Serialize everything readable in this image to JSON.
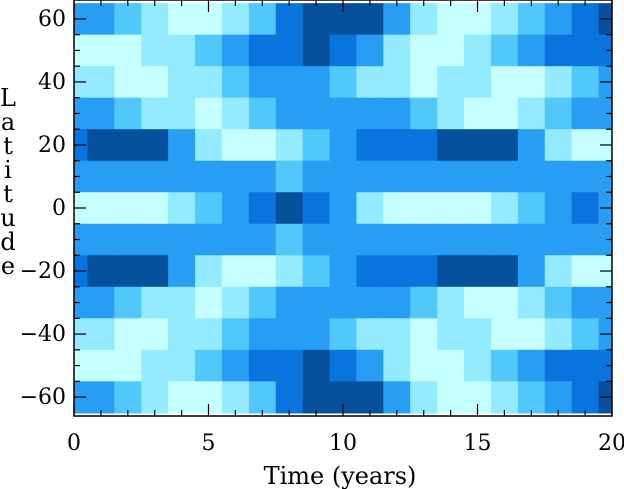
{
  "chart_data": {
    "type": "heatmap",
    "title": "",
    "xlabel": "Time (years)",
    "ylabel": "Latitude",
    "xlim": [
      0,
      20
    ],
    "ylim": [
      -66,
      66
    ],
    "x_ticks": [
      0,
      5,
      10,
      15,
      20
    ],
    "x_tick_labels": [
      "0",
      "5",
      "10",
      "15",
      "20"
    ],
    "y_ticks": [
      60,
      40,
      20,
      0,
      -20,
      -40,
      -60
    ],
    "y_tick_labels": [
      "60",
      "40",
      "20",
      "0",
      "−20",
      "−40",
      "−60"
    ],
    "color_levels": [
      "#07519c",
      "#0a74de",
      "#289df4",
      "#52c7fa",
      "#94eaff",
      "#c6ffff"
    ],
    "grid": false,
    "legend": "none",
    "x": [
      0,
      1,
      2,
      3,
      4,
      5,
      6,
      7,
      8,
      9,
      10,
      11,
      12,
      13,
      14,
      15,
      16,
      17,
      18,
      19,
      20
    ],
    "y": [
      60,
      50,
      40,
      30,
      20,
      10,
      0,
      -10,
      -20,
      -30,
      -40,
      -50,
      -60
    ],
    "z_level_index": [
      [
        2,
        2,
        3,
        4,
        5,
        5,
        4,
        3,
        1,
        0,
        0,
        0,
        2,
        4,
        5,
        5,
        4,
        3,
        2,
        1,
        0
      ],
      [
        5,
        5,
        5,
        4,
        4,
        3,
        2,
        1,
        1,
        0,
        1,
        2,
        4,
        5,
        5,
        4,
        3,
        2,
        1,
        1,
        1
      ],
      [
        4,
        4,
        5,
        5,
        4,
        4,
        3,
        2,
        2,
        2,
        3,
        4,
        4,
        5,
        4,
        4,
        5,
        5,
        4,
        3,
        2
      ],
      [
        2,
        2,
        3,
        4,
        4,
        5,
        4,
        3,
        2,
        2,
        2,
        2,
        2,
        3,
        4,
        5,
        5,
        4,
        3,
        2,
        2
      ],
      [
        1,
        0,
        0,
        0,
        2,
        4,
        5,
        5,
        4,
        3,
        2,
        1,
        1,
        1,
        0,
        0,
        0,
        2,
        4,
        5,
        5
      ],
      [
        2,
        2,
        2,
        2,
        2,
        2,
        2,
        2,
        3,
        2,
        2,
        2,
        2,
        2,
        2,
        2,
        2,
        2,
        2,
        2,
        2
      ],
      [
        5,
        5,
        5,
        5,
        4,
        3,
        2,
        1,
        0,
        1,
        2,
        4,
        5,
        5,
        5,
        5,
        4,
        3,
        2,
        1,
        2
      ],
      [
        2,
        2,
        2,
        2,
        2,
        2,
        2,
        2,
        3,
        2,
        2,
        2,
        2,
        2,
        2,
        2,
        2,
        2,
        2,
        2,
        2
      ],
      [
        1,
        0,
        0,
        0,
        2,
        4,
        5,
        5,
        4,
        3,
        2,
        1,
        1,
        1,
        0,
        0,
        0,
        2,
        4,
        5,
        5
      ],
      [
        2,
        2,
        3,
        4,
        4,
        5,
        4,
        3,
        2,
        2,
        2,
        2,
        2,
        3,
        4,
        5,
        5,
        4,
        3,
        2,
        2
      ],
      [
        4,
        4,
        5,
        5,
        4,
        4,
        3,
        2,
        2,
        2,
        3,
        4,
        4,
        5,
        4,
        4,
        5,
        5,
        4,
        3,
        2
      ],
      [
        5,
        5,
        5,
        4,
        4,
        3,
        2,
        1,
        1,
        0,
        1,
        2,
        4,
        5,
        5,
        4,
        3,
        2,
        1,
        1,
        1
      ],
      [
        2,
        2,
        3,
        4,
        5,
        5,
        4,
        3,
        1,
        0,
        0,
        0,
        2,
        4,
        5,
        5,
        4,
        3,
        2,
        1,
        0
      ]
    ]
  }
}
